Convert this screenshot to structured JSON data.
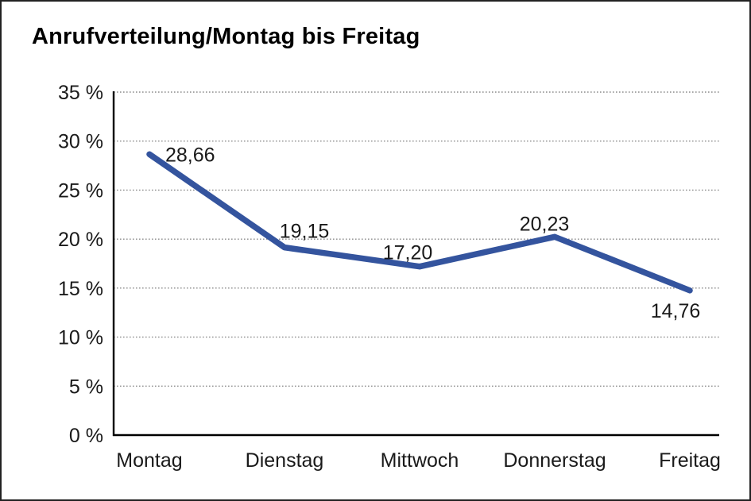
{
  "chart_data": {
    "type": "line",
    "title": "Anrufverteilung/Montag bis Freitag",
    "categories": [
      "Montag",
      "Dienstag",
      "Mittwoch",
      "Donnerstag",
      "Freitag"
    ],
    "values": [
      28.66,
      19.15,
      17.2,
      20.23,
      14.76
    ],
    "value_labels": [
      "28,66",
      "19,15",
      "17,20",
      "20,23",
      "14,76"
    ],
    "ylim": [
      0,
      35
    ],
    "ytick_step": 5,
    "ytick_labels": [
      "0 %",
      "5 %",
      "10 %",
      "15 %",
      "20 %",
      "25 %",
      "30 %",
      "35 %"
    ],
    "xlabel": "",
    "ylabel": "",
    "grid": "horizontal-dotted",
    "legend": "none",
    "line_color": "#34549E",
    "text_color": "#1a1a1a",
    "background": "#ffffff"
  }
}
